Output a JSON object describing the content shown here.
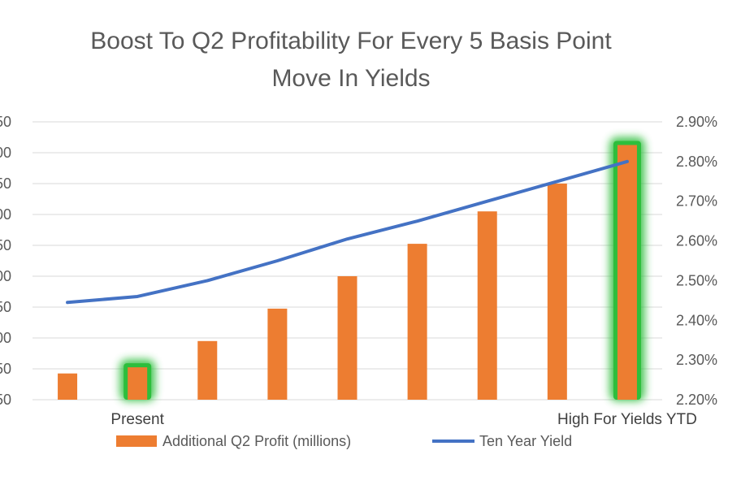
{
  "chart_data": {
    "type": "bar",
    "title_lines": [
      "Boost To Q2 Profitability For Every 5 Basis Point",
      "Move In Yields"
    ],
    "primary_axis": {
      "tick_labels": [
        "50",
        "00",
        "50",
        "00",
        "50",
        "00",
        "50",
        "00",
        "50",
        "50"
      ],
      "ylim": [
        0,
        9
      ]
    },
    "secondary_axis": {
      "tick_labels": [
        "2.20%",
        "2.30%",
        "2.40%",
        "2.50%",
        "2.60%",
        "2.70%",
        "2.80%",
        "2.90%"
      ],
      "ylim": [
        2.2,
        2.9
      ]
    },
    "category_labels": [
      "Present",
      "High For Yields YTD"
    ],
    "category_label_positions": [
      1,
      8
    ],
    "gridlines": true,
    "legend_position": "bottom",
    "series": [
      {
        "name": "Additional Q2 Profit (millions)",
        "kind": "bar",
        "axis": "primary",
        "color": "#ED7D31",
        "values": [
          0.85,
          1.05,
          1.9,
          2.95,
          4.0,
          5.05,
          6.1,
          7.0,
          8.25
        ],
        "highlighted_indices": [
          1,
          8
        ],
        "highlight_color": "#2DBE3C"
      },
      {
        "name": "Ten Year Yield",
        "kind": "line",
        "axis": "secondary",
        "color": "#4472C4",
        "values": [
          2.445,
          2.46,
          2.5,
          2.55,
          2.605,
          2.65,
          2.7,
          2.75,
          2.8
        ]
      }
    ]
  }
}
